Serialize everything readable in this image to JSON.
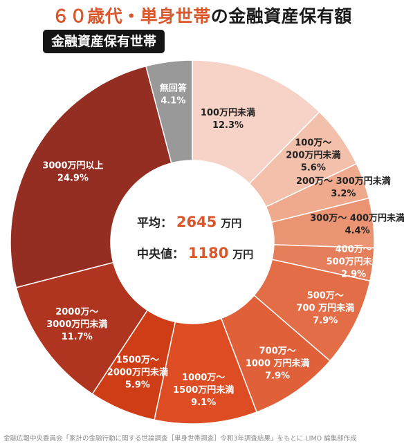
{
  "title": {
    "highlight": "６０歳代・単身世帯",
    "rest": "の金融資産保有額"
  },
  "badge": "金融資産保有世帯",
  "center": {
    "avg_label": "平均：",
    "avg_value": "2645",
    "avg_unit": "万円",
    "median_label": "中央値：",
    "median_value": "1180",
    "median_unit": "万円"
  },
  "source": "金融広報中央委員会「家計の金融行動に関する世論調査［単身世帯調査］令和3年調査結果」をもとに LIMO 編集部作成",
  "chart_data": {
    "type": "donut",
    "series": [
      {
        "label": [
          "100万円未満"
        ],
        "value": 12.3,
        "pct": "12.3%",
        "color": "#f6d3c6",
        "text_color": "#222222"
      },
      {
        "label": [
          "100万〜",
          "200万円未満"
        ],
        "value": 5.6,
        "pct": "5.6%",
        "color": "#f3c0ab",
        "text_color": "#222222"
      },
      {
        "label": [
          "200万〜 300万円未満"
        ],
        "value": 3.2,
        "pct": "3.2%",
        "color": "#efaa8d",
        "text_color": "#222222"
      },
      {
        "label": [
          "300万〜 400万円未満"
        ],
        "value": 4.4,
        "pct": "4.4%",
        "color": "#ea9474",
        "text_color": "#222222"
      },
      {
        "label": [
          "400万〜",
          "500万円未満"
        ],
        "value": 2.9,
        "pct": "2.9%",
        "color": "#e57e5a",
        "text_color": "#ffffff"
      },
      {
        "label": [
          "500万〜",
          "700 万円未満"
        ],
        "value": 7.9,
        "pct": "7.9%",
        "color": "#e26d46",
        "text_color": "#ffffff"
      },
      {
        "label": [
          "700万〜",
          "1000 万円未満"
        ],
        "value": 7.9,
        "pct": "7.9%",
        "color": "#e0603a",
        "text_color": "#ffffff"
      },
      {
        "label": [
          "1000万〜",
          "1500万円未満"
        ],
        "value": 9.1,
        "pct": "9.1%",
        "color": "#dd4c22",
        "text_color": "#ffffff"
      },
      {
        "label": [
          "1500万〜",
          "2000万円未満"
        ],
        "value": 5.9,
        "pct": "5.9%",
        "color": "#cf3d17",
        "text_color": "#ffffff"
      },
      {
        "label": [
          "2000万〜",
          "3000万円未満"
        ],
        "value": 11.7,
        "pct": "11.7%",
        "color": "#b03520",
        "text_color": "#ffffff"
      },
      {
        "label": [
          "3000万円以上"
        ],
        "value": 24.9,
        "pct": "24.9%",
        "color": "#942e22",
        "text_color": "#ffffff"
      },
      {
        "label": [
          "無回答"
        ],
        "value": 4.1,
        "pct": "4.1%",
        "color": "#999999",
        "text_color": "#ffffff"
      }
    ]
  }
}
